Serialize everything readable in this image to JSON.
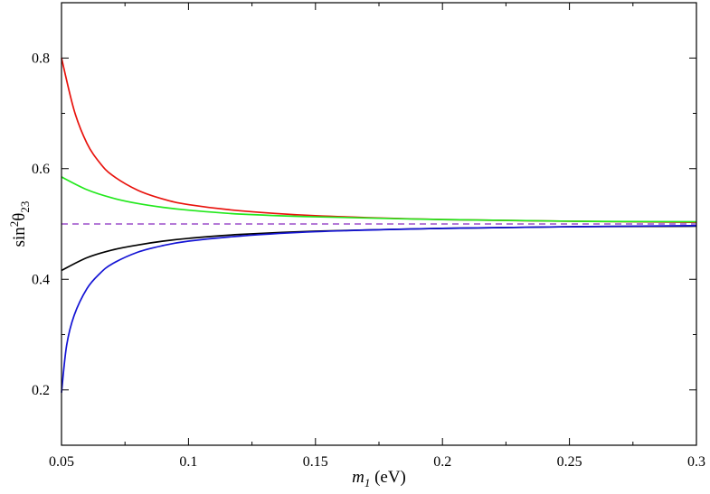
{
  "chart_data": {
    "type": "line",
    "xlabel": {
      "var": "m",
      "sub": "1",
      "unit": "(eV)"
    },
    "ylabel": {
      "fn": "sin",
      "sup": "2",
      "var": "θ",
      "sub": "23"
    },
    "xlim": [
      0.05,
      0.3
    ],
    "ylim": [
      0.1,
      0.9
    ],
    "x_ticks": [
      0.05,
      0.1,
      0.15,
      0.2,
      0.25,
      0.3
    ],
    "x_tick_labels": [
      "0.05",
      "0.1",
      "0.15",
      "0.2",
      "0.25",
      "0.3"
    ],
    "y_ticks": [
      0.2,
      0.4,
      0.6,
      0.8
    ],
    "y_tick_labels": [
      "0.2",
      "0.4",
      "0.6",
      "0.8"
    ],
    "grid": false,
    "legend": "none",
    "series": [
      {
        "color": "#e8120c",
        "dashed": false,
        "x": [
          0.05,
          0.055,
          0.06,
          0.065,
          0.07,
          0.08,
          0.09,
          0.1,
          0.12,
          0.15,
          0.2,
          0.25,
          0.3
        ],
        "y": [
          0.8,
          0.705,
          0.646,
          0.611,
          0.588,
          0.561,
          0.545,
          0.535,
          0.524,
          0.515,
          0.508,
          0.505,
          0.503
        ]
      },
      {
        "color": "#22e81c",
        "dashed": false,
        "x": [
          0.05,
          0.06,
          0.07,
          0.08,
          0.09,
          0.1,
          0.12,
          0.15,
          0.2,
          0.25,
          0.3
        ],
        "y": [
          0.585,
          0.562,
          0.547,
          0.537,
          0.53,
          0.525,
          0.518,
          0.513,
          0.508,
          0.505,
          0.504
        ]
      },
      {
        "color": "#9b4dca",
        "dashed": true,
        "x": [
          0.05,
          0.3
        ],
        "y": [
          0.5,
          0.5
        ]
      },
      {
        "color": "#000000",
        "dashed": false,
        "x": [
          0.05,
          0.06,
          0.07,
          0.08,
          0.09,
          0.1,
          0.12,
          0.15,
          0.2,
          0.25,
          0.3
        ],
        "y": [
          0.416,
          0.439,
          0.453,
          0.462,
          0.469,
          0.474,
          0.481,
          0.487,
          0.492,
          0.495,
          0.496
        ]
      },
      {
        "color": "#1414d4",
        "dashed": false,
        "x": [
          0.05,
          0.052,
          0.055,
          0.06,
          0.065,
          0.07,
          0.08,
          0.09,
          0.1,
          0.12,
          0.15,
          0.2,
          0.25,
          0.3
        ],
        "y": [
          0.195,
          0.28,
          0.335,
          0.383,
          0.41,
          0.428,
          0.449,
          0.461,
          0.469,
          0.478,
          0.486,
          0.492,
          0.495,
          0.497
        ]
      }
    ]
  }
}
